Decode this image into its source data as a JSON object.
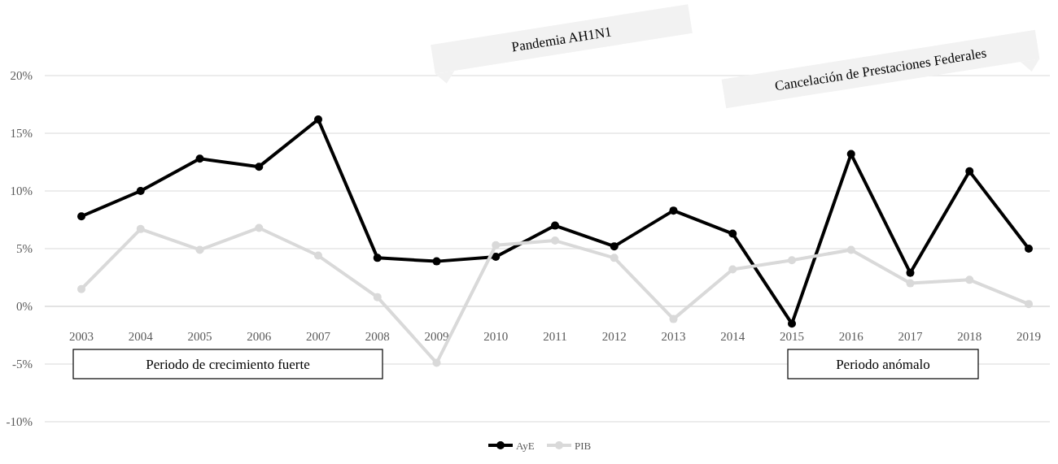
{
  "chart_data": {
    "type": "line",
    "categories": [
      "2003",
      "2004",
      "2005",
      "2006",
      "2007",
      "2008",
      "2009",
      "2010",
      "2011",
      "2012",
      "2013",
      "2014",
      "2015",
      "2016",
      "2017",
      "2018",
      "2019"
    ],
    "series": [
      {
        "name": "AyE",
        "color": "#000000",
        "values": [
          7.8,
          10.0,
          12.8,
          12.1,
          16.2,
          4.2,
          3.9,
          4.3,
          7.0,
          5.2,
          8.3,
          6.3,
          -1.5,
          13.2,
          2.9,
          11.7,
          5.0
        ]
      },
      {
        "name": "PIB",
        "color": "#d9d9d9",
        "values": [
          1.5,
          6.7,
          4.9,
          6.8,
          4.4,
          0.8,
          -4.9,
          5.3,
          5.7,
          4.2,
          -1.1,
          3.2,
          4.0,
          4.9,
          2.0,
          2.3,
          0.2
        ]
      }
    ],
    "ylim": [
      -10,
      20
    ],
    "yticks": [
      {
        "value": -10,
        "label": "-10%"
      },
      {
        "value": -5,
        "label": "-5%"
      },
      {
        "value": 0,
        "label": "0%"
      },
      {
        "value": 5,
        "label": "5%"
      },
      {
        "value": 10,
        "label": "10%"
      },
      {
        "value": 15,
        "label": "15%"
      },
      {
        "value": 20,
        "label": "20%"
      }
    ],
    "grid": "y",
    "legend": "bottom",
    "marker": "circle",
    "line_style": "solid",
    "annotations": [
      "Pandemia AH1N1",
      "Cancelación de Prestaciones Federales",
      "Periodo de crecimiento fuerte",
      "Periodo anómalo"
    ]
  }
}
